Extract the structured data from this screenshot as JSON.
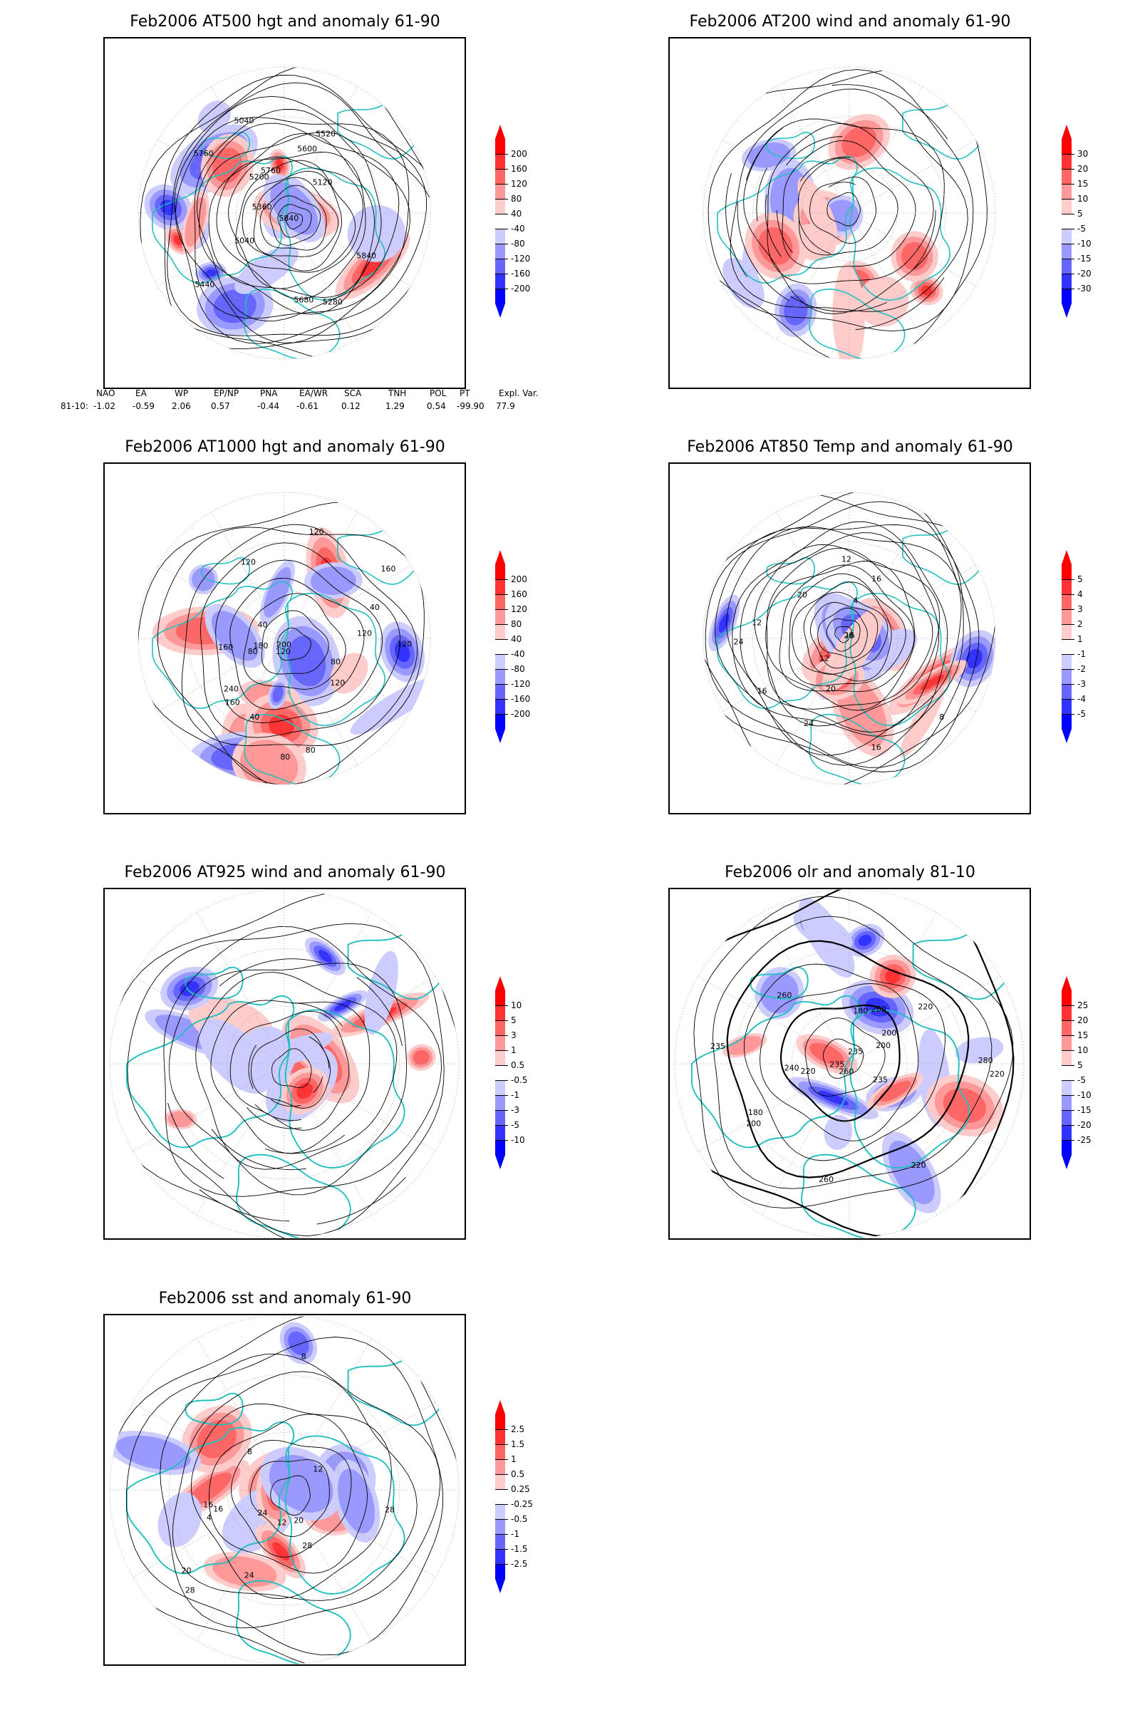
{
  "panels": [
    {
      "id": "p500",
      "title": "Feb2006 AT500 hgt and anomaly 61-90",
      "bar_labels": [
        "200",
        "160",
        "120",
        "80",
        "40",
        "-40",
        "-80",
        "-120",
        "-160",
        "-200"
      ],
      "contour_labels": [
        "5840",
        "5760",
        "5040",
        "5040",
        "5120",
        "5200",
        "5280",
        "5360",
        "5440",
        "5520",
        "5600",
        "5680",
        "5760",
        "5840"
      ]
    },
    {
      "id": "p200",
      "title": "Feb2006 AT200 wind and anomaly 61-90",
      "bar_labels": [
        "30",
        "20",
        "15",
        "10",
        "5",
        "-5",
        "-10",
        "-15",
        "-20",
        "-30"
      ],
      "contour_labels": []
    },
    {
      "id": "p1000",
      "title": "Feb2006 AT1000 hgt and anomaly 61-90",
      "bar_labels": [
        "200",
        "160",
        "120",
        "80",
        "40",
        "-40",
        "-80",
        "-120",
        "-160",
        "-200"
      ],
      "contour_labels": [
        "80",
        "120",
        "160",
        "80",
        "40",
        "40",
        "120",
        "200",
        "160",
        "120",
        "240",
        "40",
        "160",
        "120",
        "80",
        "120",
        "80",
        "120",
        "180"
      ]
    },
    {
      "id": "p850",
      "title": "Feb2006 AT850 Temp and anomaly 61-90",
      "bar_labels": [
        "5",
        "4",
        "3",
        "2",
        "1",
        "-1",
        "-2",
        "-3",
        "-4",
        "-5"
      ],
      "contour_labels": [
        "16",
        "12",
        "8",
        "16",
        "20",
        "24",
        "16",
        "12",
        "20",
        "4",
        "12",
        "16",
        "20",
        "24"
      ]
    },
    {
      "id": "p925",
      "title": "Feb2006 AT925 wind and anomaly 61-90",
      "bar_labels": [
        "10",
        "5",
        "3",
        "1",
        "0.5",
        "-0.5",
        "-1",
        "-3",
        "-5",
        "-10"
      ],
      "contour_labels": []
    },
    {
      "id": "polr",
      "title": "Feb2006 olr and anomaly 81-10",
      "bar_labels": [
        "25",
        "20",
        "15",
        "10",
        "5",
        "-5",
        "-10",
        "-15",
        "-20",
        "-25"
      ],
      "contour_labels": [
        "260",
        "240",
        "200",
        "220",
        "235",
        "220",
        "260",
        "235",
        "180",
        "180",
        "200",
        "260",
        "280",
        "235",
        "220",
        "200",
        "235",
        "260",
        "220"
      ]
    },
    {
      "id": "psst",
      "title": "Feb2006 sst and anomaly 61-90",
      "bar_labels": [
        "2.5",
        "1.5",
        "1",
        "0.5",
        "0.25",
        "-0.25",
        "-0.5",
        "-1",
        "-1.5",
        "-2.5"
      ],
      "contour_labels": [
        "28",
        "24",
        "20",
        "16",
        "12",
        "8",
        "4",
        "28",
        "12",
        "8",
        "16",
        "20",
        "24",
        "28"
      ]
    }
  ],
  "indices": {
    "headers": [
      "NAO",
      "EA",
      "WP",
      "EP/NP",
      "PNA",
      "EA/WR",
      "SCA",
      "TNH",
      "POL",
      "PT",
      "Expl. Var."
    ],
    "row_label": "81-10:",
    "values": [
      "-1.02",
      "-0.59",
      "2.06",
      "0.57",
      "-0.44",
      "-0.61",
      "0.12",
      "1.29",
      "0.54",
      "-99.90",
      "77.9"
    ]
  },
  "colors": {
    "red_scale": [
      "#ff0000",
      "#ff3333",
      "#ff6666",
      "#ff9999",
      "#ffcccc"
    ],
    "blue_scale": [
      "#ccccff",
      "#9999ff",
      "#6666ff",
      "#3333ff",
      "#0000ff"
    ],
    "coast": "#20c0c0"
  }
}
